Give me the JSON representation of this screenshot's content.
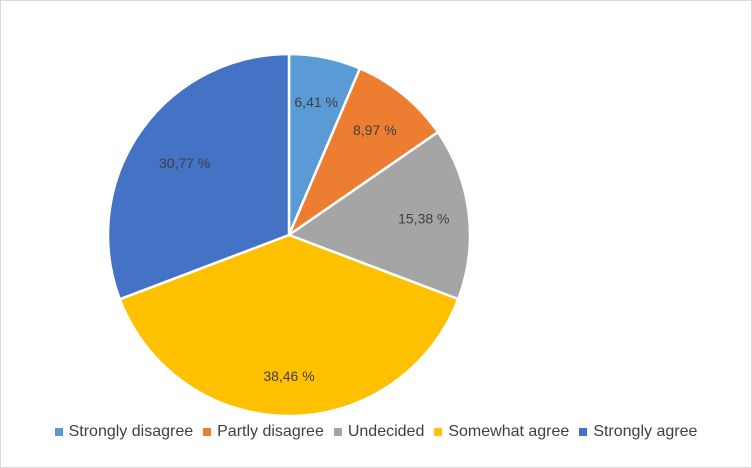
{
  "chart_data": {
    "type": "pie",
    "title": "",
    "categories": [
      "Strongly disagree",
      "Partly disagree",
      "Undecided",
      "Somewhat agree",
      "Strongly agree"
    ],
    "values": [
      6.41,
      8.97,
      15.38,
      38.46,
      30.77
    ],
    "value_labels": [
      "6,41 %",
      "8,97 %",
      "15,38 %",
      "38,46 %",
      "30,77 %"
    ],
    "colors": [
      "#5b9bd5",
      "#ed7d31",
      "#a5a5a5",
      "#ffc000",
      "#4472c4"
    ],
    "legend_position": "bottom"
  }
}
